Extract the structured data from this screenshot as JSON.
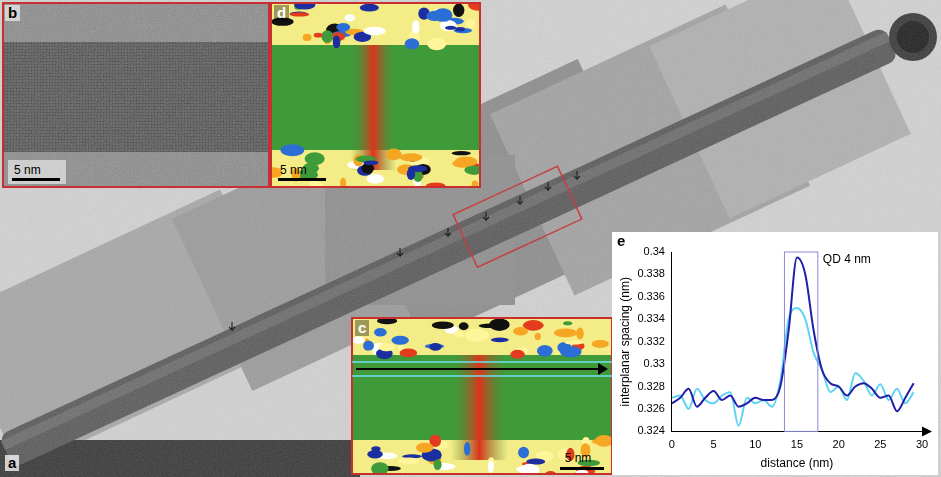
{
  "figure": {
    "panels": {
      "overview": {
        "letter": "a"
      },
      "lattice": {
        "letter": "b",
        "scale_bar": "5 nm"
      },
      "strain_map": {
        "letter": "d",
        "scale_bar": "5 nm"
      },
      "strain_profile_map": {
        "letter": "c",
        "scale_bar": "5 nm"
      },
      "profile_plot": {
        "letter": "e"
      }
    }
  },
  "chart_data": {
    "type": "line",
    "x_label": "distance (nm)",
    "y_label": "interplanar spacing (nm)",
    "x": [
      0,
      1,
      2,
      3,
      4,
      5,
      6,
      7,
      8,
      9,
      10,
      11,
      12,
      13,
      14,
      15,
      16,
      17,
      18,
      19,
      20,
      21,
      22,
      23,
      24,
      25,
      26,
      27,
      28,
      29
    ],
    "series": [
      {
        "color": "#1f1fa8",
        "line_style": "solid",
        "values": [
          0.3265,
          0.327,
          0.3278,
          0.3262,
          0.327,
          0.3276,
          0.3268,
          0.3272,
          0.3262,
          0.3265,
          0.327,
          0.3268,
          0.3268,
          0.328,
          0.333,
          0.3395,
          0.338,
          0.333,
          0.3295,
          0.3283,
          0.328,
          0.3272,
          0.328,
          0.3283,
          0.3278,
          0.327,
          0.3272,
          0.3258,
          0.327,
          0.3283
        ]
      },
      {
        "color": "#5fd3f3",
        "line_style": "solid",
        "values": [
          0.327,
          0.3272,
          0.326,
          0.3278,
          0.3268,
          0.3265,
          0.3272,
          0.3275,
          0.3245,
          0.327,
          0.3265,
          0.3268,
          0.3262,
          0.3285,
          0.334,
          0.335,
          0.334,
          0.331,
          0.3295,
          0.3275,
          0.328,
          0.3268,
          0.3292,
          0.3285,
          0.3272,
          0.3282,
          0.3268,
          0.3278,
          0.3265,
          0.3275
        ]
      }
    ],
    "xlim": [
      0,
      30
    ],
    "xticks": [
      0,
      5,
      10,
      15,
      20,
      25,
      30
    ],
    "ylim": [
      0.324,
      0.34
    ],
    "yticks": [
      0.324,
      0.326,
      0.328,
      0.33,
      0.332,
      0.334,
      0.336,
      0.338,
      0.34
    ],
    "grid": false,
    "annotations": [
      {
        "text": "QD 4 nm",
        "x_range": [
          13.5,
          17.5
        ]
      }
    ]
  }
}
